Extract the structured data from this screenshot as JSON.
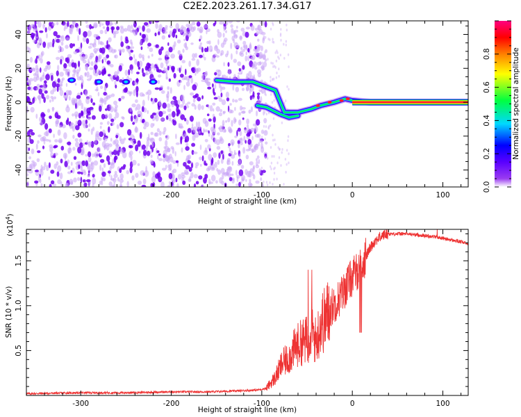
{
  "title": "C2E2.2023.261.17.34.G17",
  "chart_data": [
    {
      "type": "heatmap",
      "xlabel": "Height of straight line (km)",
      "ylabel": "Frequency (Hz)",
      "xlim": [
        -360,
        128
      ],
      "ylim": [
        -50,
        48
      ],
      "x_ticks": [
        -300,
        -200,
        -100,
        0,
        100
      ],
      "y_ticks": [
        -40,
        -20,
        0,
        20,
        40
      ],
      "colorbar": {
        "label": "Normalized spectral amplitude",
        "range": [
          0,
          1
        ],
        "ticks": [
          "0.0",
          "0.2",
          "0.4",
          "0.6",
          "0.8"
        ],
        "tick_values": [
          0,
          0.2,
          0.4,
          0.6,
          0.8
        ],
        "colors": [
          "#ffffff",
          "#9a3cf0",
          "#5a00ff",
          "#0000ff",
          "#00d8ff",
          "#00ff40",
          "#ffff00",
          "#ff8000",
          "#ff0000",
          "#ff0080"
        ]
      },
      "noise_region": {
        "x_from": -360,
        "x_to": -95,
        "color": "#7000ee"
      },
      "ridge": [
        {
          "x": -310,
          "y": 13
        },
        {
          "x": -280,
          "y": 12
        },
        {
          "x": -250,
          "y": 12
        },
        {
          "x": -220,
          "y": 12
        },
        {
          "x": -150,
          "y": 13
        },
        {
          "x": -130,
          "y": 12
        },
        {
          "x": -110,
          "y": 12
        },
        {
          "x": -95,
          "y": 9
        },
        {
          "x": -85,
          "y": 7
        },
        {
          "x": -75,
          "y": -6
        },
        {
          "x": -60,
          "y": -6
        },
        {
          "x": -45,
          "y": -4
        },
        {
          "x": -35,
          "y": -2
        },
        {
          "x": -20,
          "y": 0
        },
        {
          "x": -8,
          "y": 2
        },
        {
          "x": 0,
          "y": 1
        },
        {
          "x": 20,
          "y": 0
        },
        {
          "x": 128,
          "y": 0
        }
      ],
      "lower_branch": [
        {
          "x": -105,
          "y": -2
        },
        {
          "x": -95,
          "y": -3
        },
        {
          "x": -80,
          "y": -7
        },
        {
          "x": -70,
          "y": -9
        },
        {
          "x": -60,
          "y": -8
        }
      ],
      "steady_band": {
        "x_from": 0,
        "x_to": 128,
        "y": 0
      }
    },
    {
      "type": "line",
      "xlabel": "Height of straight line (km)",
      "ylabel": "SNR (10 * v/v)",
      "y_multiplier": "(x10",
      "y_multiplier_exp": "4",
      "y_multiplier_close": ")",
      "xlim": [
        -360,
        128
      ],
      "ylim": [
        0,
        1.85
      ],
      "x_ticks": [
        -300,
        -200,
        -100,
        0,
        100
      ],
      "y_ticks": [
        "0.5",
        "1.0",
        "1.5"
      ],
      "y_tick_values": [
        0.5,
        1.0,
        1.5
      ],
      "color": "#ee3333",
      "series": [
        {
          "x": [
            -360,
            -300,
            -250,
            -200,
            -160,
            -130,
            -105,
            -95,
            -85,
            -78,
            -70,
            -62,
            -55,
            -50,
            -45,
            -40,
            -35,
            -30,
            -25,
            -20,
            -15,
            -10,
            -5,
            0,
            5,
            10,
            15,
            20,
            25,
            30,
            35,
            40,
            50,
            60,
            70,
            80,
            90,
            100,
            110,
            120,
            128
          ],
          "y": [
            0.02,
            0.03,
            0.03,
            0.04,
            0.04,
            0.05,
            0.06,
            0.08,
            0.2,
            0.35,
            0.42,
            0.55,
            0.6,
            0.62,
            0.7,
            0.6,
            0.8,
            0.85,
            0.95,
            1.02,
            1.08,
            1.15,
            1.25,
            1.32,
            1.38,
            1.45,
            1.55,
            1.65,
            1.72,
            1.76,
            1.79,
            1.8,
            1.8,
            1.8,
            1.79,
            1.78,
            1.77,
            1.75,
            1.73,
            1.71,
            1.69
          ]
        }
      ]
    }
  ]
}
